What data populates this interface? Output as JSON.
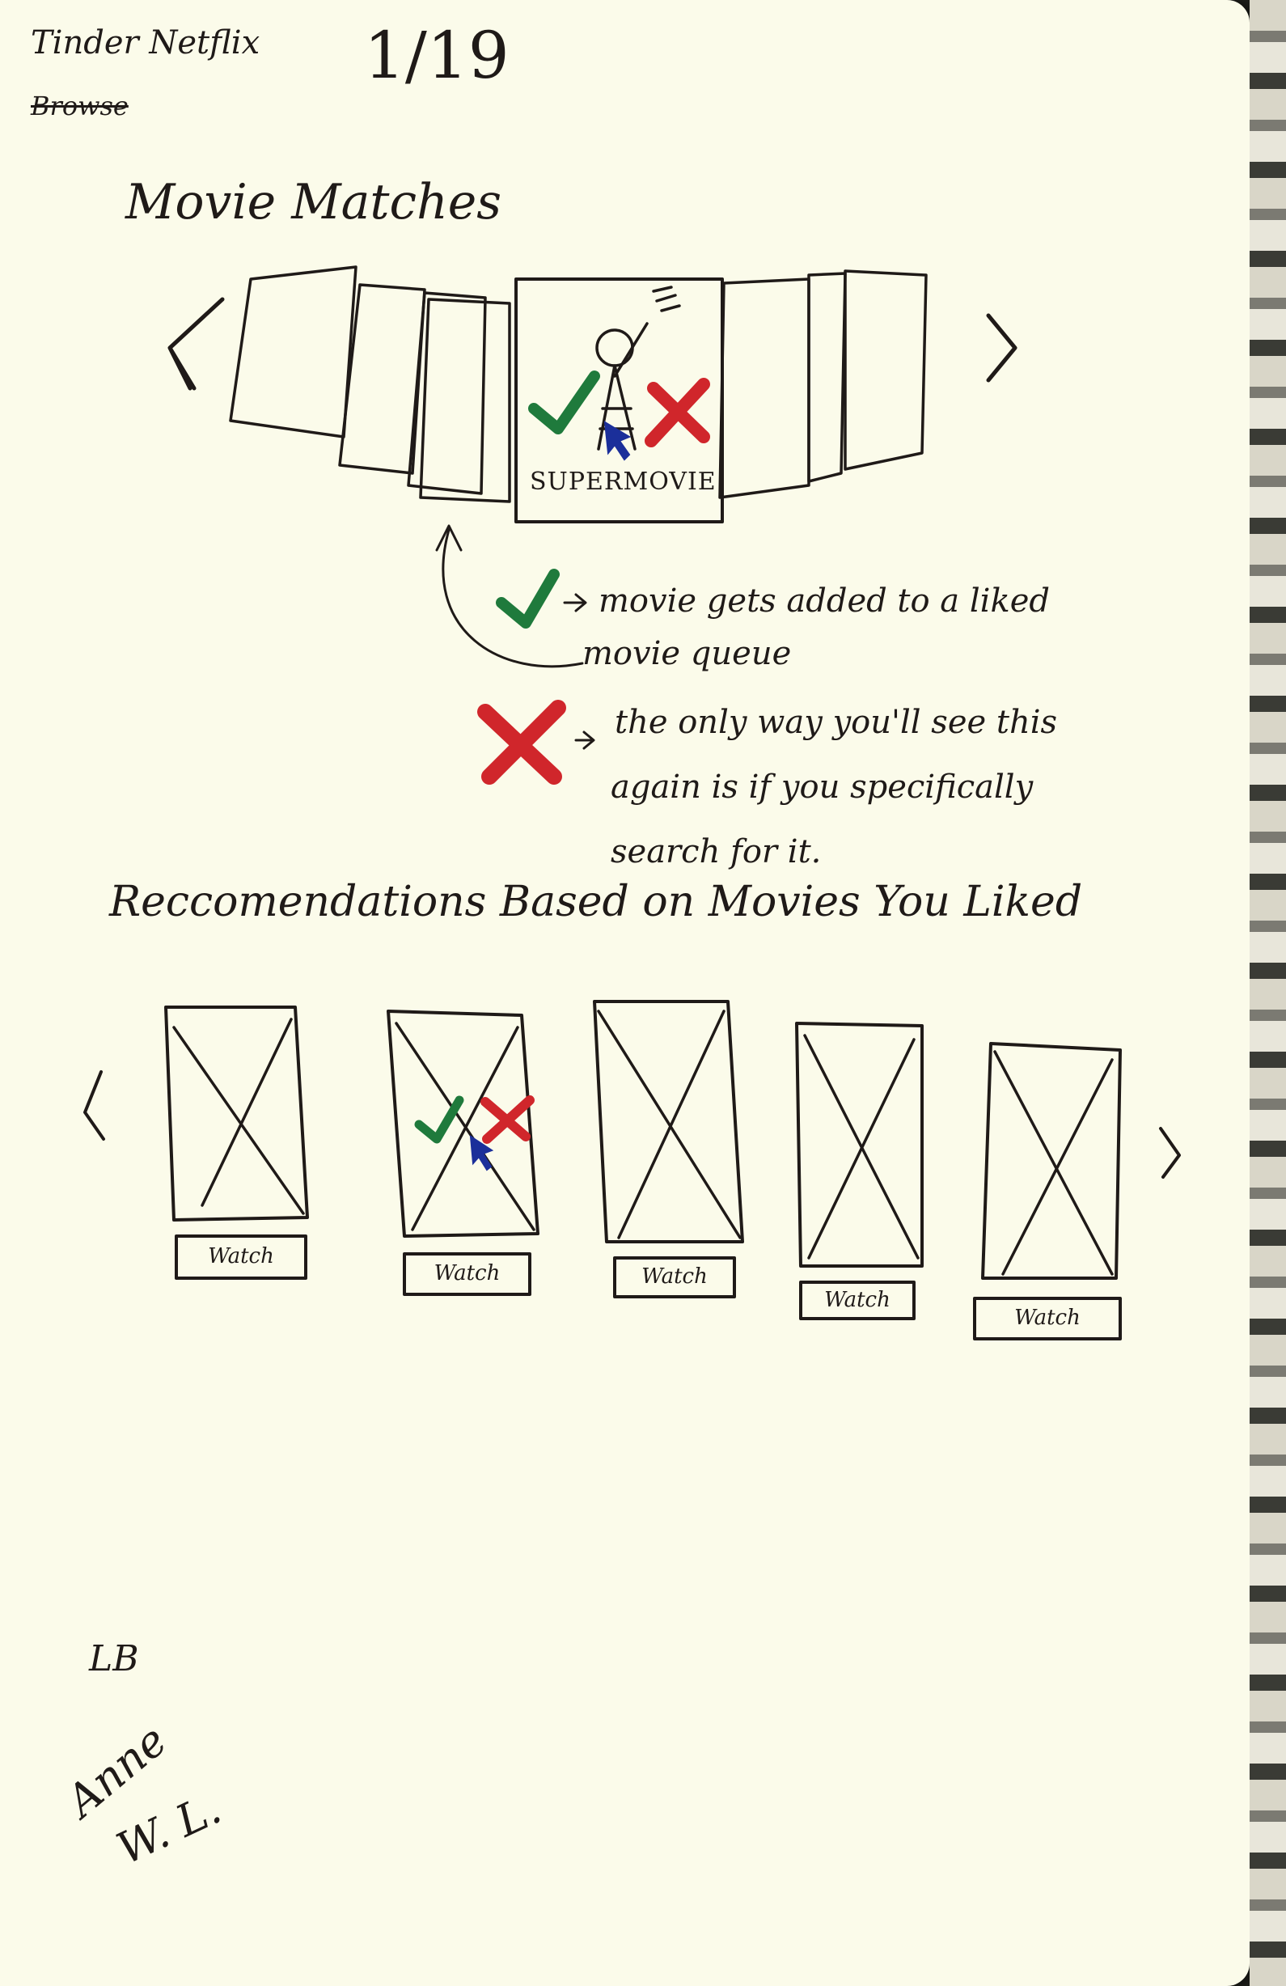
{
  "header": {
    "app_name": "Tinder Netflix",
    "crossed_word": "Browse",
    "date": "1/19"
  },
  "movie_matches": {
    "title": "Movie Matches",
    "featured_label": "SUPERMOVIE",
    "like_note_line1": "movie gets added to a liked",
    "like_note_line2": "movie queue",
    "dislike_note_line1": "the only way you'll see this",
    "dislike_note_line2": "again is if you specifically",
    "dislike_note_line3": "search for it."
  },
  "recommendations": {
    "title": "Reccomendations Based on Movies You Liked",
    "items": [
      {
        "button": "Watch"
      },
      {
        "button": "Watch"
      },
      {
        "button": "Watch"
      },
      {
        "button": "Watch"
      },
      {
        "button": "Watch"
      }
    ]
  },
  "footer": {
    "initials": "LB",
    "signature_line1": "Anne",
    "signature_line2": "W. L."
  },
  "colors": {
    "check": "#1f7a3c",
    "cross": "#d0262b",
    "cursor": "#1b2f9a",
    "ink": "#1f1a18",
    "paper": "#fbfbea"
  },
  "icons": [
    "check-icon",
    "cross-icon",
    "cursor-icon",
    "chevron-left-icon",
    "chevron-right-icon"
  ]
}
